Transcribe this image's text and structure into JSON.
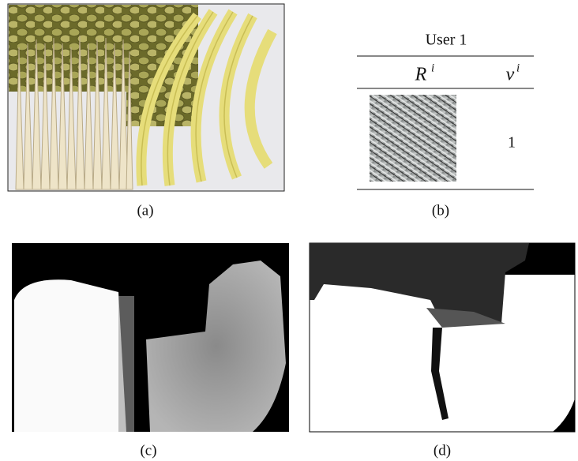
{
  "panels": {
    "a": {
      "caption": "(a)"
    },
    "b": {
      "caption": "(b)"
    },
    "c": {
      "caption": "(c)"
    },
    "d": {
      "caption": "(d)"
    }
  },
  "table": {
    "title": "User 1",
    "columns": [
      {
        "symbol": "R",
        "superscript": "i"
      },
      {
        "symbol": "v",
        "superscript": "i"
      }
    ],
    "rows": [
      {
        "v": 1
      }
    ]
  }
}
